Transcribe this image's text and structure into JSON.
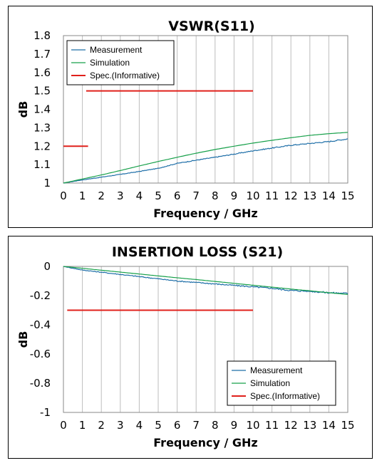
{
  "chart_data": [
    {
      "type": "line",
      "title": "VSWR(S11)",
      "xlabel": "Frequency / GHz",
      "ylabel": "dB",
      "xlim": [
        0,
        15
      ],
      "ylim": [
        1,
        1.8
      ],
      "x_ticks": [
        "0",
        "1",
        "2",
        "3",
        "4",
        "5",
        "6",
        "7",
        "8",
        "9",
        "10",
        "11",
        "12",
        "13",
        "14",
        "15"
      ],
      "y_ticks": [
        "1",
        "1.1",
        "1.2",
        "1.3",
        "1.4",
        "1.5",
        "1.6",
        "1.7",
        "1.8"
      ],
      "grid": "vertical",
      "legend_position": "top-left",
      "legend": [
        "Measurement",
        "Simulation",
        "Spec.(Informative)"
      ],
      "colors": {
        "measurement": "#1f6fa8",
        "simulation": "#17a04a",
        "spec": "#e0201b"
      },
      "series": [
        {
          "name": "Measurement",
          "x": [
            0,
            1,
            2,
            3,
            4,
            5,
            6,
            7,
            8,
            9,
            10,
            11,
            12,
            13,
            14,
            15
          ],
          "values": [
            1.0,
            1.017,
            1.032,
            1.047,
            1.063,
            1.08,
            1.107,
            1.124,
            1.14,
            1.157,
            1.175,
            1.19,
            1.205,
            1.215,
            1.225,
            1.24
          ]
        },
        {
          "name": "Simulation",
          "x": [
            0,
            1,
            2,
            3,
            4,
            5,
            6,
            7,
            8,
            9,
            10,
            11,
            12,
            13,
            14,
            15
          ],
          "values": [
            1.0,
            1.022,
            1.044,
            1.068,
            1.093,
            1.117,
            1.14,
            1.162,
            1.182,
            1.2,
            1.217,
            1.232,
            1.246,
            1.259,
            1.268,
            1.275
          ]
        },
        {
          "name": "Spec.(Informative)",
          "segments": [
            {
              "x": [
                0,
                1.3
              ],
              "y": [
                1.2,
                1.2
              ]
            },
            {
              "x": [
                1.2,
                10
              ],
              "y": [
                1.5,
                1.5
              ]
            }
          ]
        }
      ]
    },
    {
      "type": "line",
      "title": "INSERTION LOSS (S21)",
      "xlabel": "Frequency / GHz",
      "ylabel": "dB",
      "xlim": [
        0,
        15
      ],
      "ylim": [
        -1,
        0
      ],
      "x_ticks": [
        "0",
        "1",
        "2",
        "3",
        "4",
        "5",
        "6",
        "7",
        "8",
        "9",
        "10",
        "11",
        "12",
        "13",
        "14",
        "15"
      ],
      "y_ticks": [
        "0",
        "-0.2",
        "-0.4",
        "-0.6",
        "-0.8",
        "-1"
      ],
      "grid": "vertical",
      "legend_position": "bottom-right",
      "legend": [
        "Measurement",
        "Simulation",
        "Spec.(Informative)"
      ],
      "colors": {
        "measurement": "#1f6fa8",
        "simulation": "#17a04a",
        "spec": "#e0201b"
      },
      "series": [
        {
          "name": "Measurement",
          "x": [
            0,
            1,
            2,
            3,
            4,
            5,
            6,
            7,
            8,
            9,
            10,
            11,
            12,
            13,
            14,
            15
          ],
          "values": [
            0.0,
            -0.025,
            -0.04,
            -0.055,
            -0.07,
            -0.085,
            -0.1,
            -0.11,
            -0.12,
            -0.13,
            -0.14,
            -0.15,
            -0.165,
            -0.17,
            -0.18,
            -0.185
          ]
        },
        {
          "name": "Simulation",
          "x": [
            0,
            1,
            2,
            3,
            4,
            5,
            6,
            7,
            8,
            9,
            10,
            11,
            12,
            13,
            14,
            15
          ],
          "values": [
            0.0,
            -0.013,
            -0.026,
            -0.039,
            -0.052,
            -0.065,
            -0.078,
            -0.09,
            -0.103,
            -0.116,
            -0.129,
            -0.142,
            -0.155,
            -0.167,
            -0.18,
            -0.192
          ]
        },
        {
          "name": "Spec.(Informative)",
          "segments": [
            {
              "x": [
                0.2,
                10
              ],
              "y": [
                -0.3,
                -0.3
              ]
            }
          ]
        }
      ]
    }
  ]
}
